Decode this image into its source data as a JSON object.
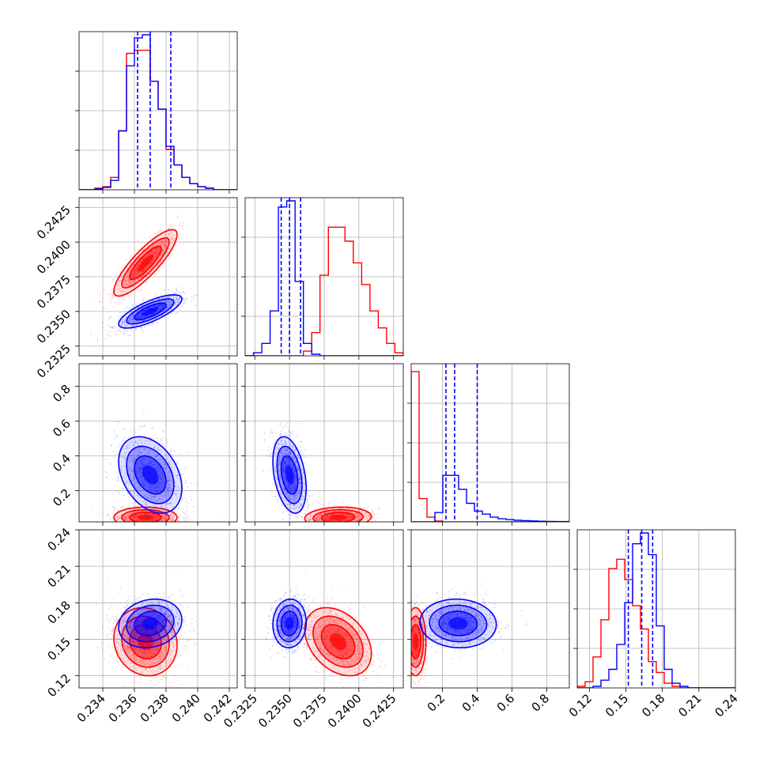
{
  "chart_data": {
    "type": "scatter",
    "description_kind": "corner",
    "parameters": [
      {
        "range": [
          0.2325,
          0.2425
        ],
        "ticks": [
          0.234,
          0.236,
          0.238,
          0.24,
          0.242
        ],
        "tick_labels": [
          "0.234",
          "0.236",
          "0.238",
          "0.240",
          "0.242"
        ]
      },
      {
        "range": [
          0.2318,
          0.2432
        ],
        "ticks": [
          0.2325,
          0.235,
          0.2375,
          0.24,
          0.2425
        ],
        "tick_labels": [
          "0.2325",
          "0.2350",
          "0.2375",
          "0.2400",
          "0.2425"
        ]
      },
      {
        "range": [
          0.02,
          0.93
        ],
        "ticks": [
          0.2,
          0.4,
          0.6,
          0.8
        ],
        "tick_labels": [
          "0.2",
          "0.4",
          "0.6",
          "0.8"
        ]
      },
      {
        "range": [
          0.11,
          0.24
        ],
        "ticks": [
          0.12,
          0.15,
          0.18,
          0.21,
          0.24
        ],
        "tick_labels": [
          "0.12",
          "0.15",
          "0.18",
          "0.21",
          "0.24"
        ]
      }
    ],
    "grid": true,
    "series": [
      {
        "color": "#ff0000",
        "mean": [
          0.2367,
          0.2385,
          0.045,
          0.148
        ],
        "std": [
          0.001,
          0.0012,
          0.03,
          0.014
        ],
        "corr": {
          "0-1": 0.85,
          "0-2": 0.0,
          "0-3": -0.1,
          "1-2": 0.1,
          "1-3": -0.35,
          "2-3": 0.0
        }
      },
      {
        "color": "#0000ff",
        "mean": [
          0.237,
          0.235,
          0.29,
          0.163
        ],
        "std": [
          0.001,
          0.0006,
          0.11,
          0.01
        ],
        "corr": {
          "0-1": 0.75,
          "0-2": -0.35,
          "0-3": 0.15,
          "1-2": -0.35,
          "1-3": 0.05,
          "2-3": -0.05
        }
      }
    ],
    "quantile_lines": {
      "color": "#0000ff",
      "style": "dashed",
      "values": [
        [
          0.2362,
          0.237,
          0.2383
        ],
        [
          0.2344,
          0.235,
          0.2358
        ],
        [
          0.22,
          0.27,
          0.4
        ],
        [
          0.152,
          0.163,
          0.172
        ]
      ]
    },
    "histograms": [
      {
        "edges": [
          0.2325,
          0.233,
          0.2335,
          0.234,
          0.2345,
          0.235,
          0.2355,
          0.236,
          0.2365,
          0.237,
          0.2375,
          0.238,
          0.2385,
          0.239,
          0.2395,
          0.24,
          0.2405,
          0.241,
          0.2415,
          0.242,
          0.2425
        ],
        "red": [
          0,
          0,
          0.01,
          0.02,
          0.08,
          0.38,
          0.88,
          0.9,
          0.9,
          0.7,
          0.52,
          0.26,
          0.16,
          0.08,
          0.04,
          0.02,
          0.01,
          0,
          0,
          0
        ],
        "blue": [
          0,
          0,
          0.005,
          0.015,
          0.06,
          0.38,
          0.8,
          0.98,
          1.0,
          0.7,
          0.52,
          0.28,
          0.16,
          0.08,
          0.04,
          0.02,
          0.01,
          0,
          0,
          0
        ]
      },
      {
        "edges": [
          0.2318,
          0.2324,
          0.233,
          0.2336,
          0.2342,
          0.2348,
          0.2354,
          0.236,
          0.2366,
          0.2372,
          0.2378,
          0.2384,
          0.239,
          0.2396,
          0.2402,
          0.2408,
          0.2414,
          0.242,
          0.2426,
          0.2432
        ],
        "red": [
          0,
          0,
          0,
          0,
          0,
          0,
          0,
          0.03,
          0.15,
          0.52,
          0.83,
          0.83,
          0.74,
          0.6,
          0.46,
          0.29,
          0.18,
          0.08,
          0.02
        ],
        "blue": [
          0,
          0.02,
          0.08,
          0.29,
          0.96,
          1.0,
          0.48,
          0.08,
          0.01,
          0,
          0,
          0,
          0,
          0,
          0,
          0,
          0,
          0,
          0
        ]
      },
      {
        "edges": [
          0.02,
          0.0655,
          0.111,
          0.1565,
          0.202,
          0.2475,
          0.293,
          0.3385,
          0.384,
          0.4295,
          0.475,
          0.5205,
          0.566,
          0.6115,
          0.657,
          0.7025,
          0.748,
          0.7935,
          0.839,
          0.8845,
          0.93
        ],
        "red": [
          0.97,
          0.15,
          0.03,
          0.005,
          0,
          0,
          0,
          0,
          0,
          0,
          0,
          0,
          0,
          0,
          0,
          0,
          0,
          0,
          0,
          0
        ],
        "blue": [
          0,
          0,
          0,
          0.06,
          0.3,
          0.3,
          0.21,
          0.12,
          0.07,
          0.05,
          0.03,
          0.02,
          0.015,
          0.01,
          0.008,
          0.006,
          0.004,
          0.003,
          0.002,
          0.002
        ]
      },
      {
        "edges": [
          0.11,
          0.1165,
          0.123,
          0.1295,
          0.136,
          0.1425,
          0.149,
          0.1555,
          0.162,
          0.1685,
          0.175,
          0.1815,
          0.188,
          0.1945,
          0.201,
          0.2075,
          0.214,
          0.2205,
          0.227,
          0.2335,
          0.24
        ],
        "red": [
          0.01,
          0.04,
          0.2,
          0.44,
          0.77,
          0.83,
          0.7,
          0.53,
          0.38,
          0.17,
          0.1,
          0.03,
          0.01,
          0,
          0,
          0,
          0,
          0,
          0,
          0
        ],
        "blue": [
          0,
          0,
          0.01,
          0.05,
          0.12,
          0.28,
          0.55,
          0.93,
          1.0,
          0.86,
          0.4,
          0.12,
          0.03,
          0.01,
          0,
          0,
          0,
          0,
          0,
          0
        ]
      }
    ]
  }
}
